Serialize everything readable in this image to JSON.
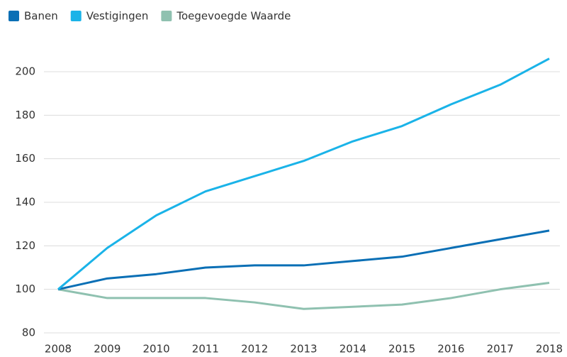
{
  "chart_data": {
    "type": "line",
    "x": [
      2008,
      2009,
      2010,
      2011,
      2012,
      2013,
      2014,
      2015,
      2016,
      2017,
      2018
    ],
    "xlim": [
      2008,
      2018
    ],
    "xticks": [
      2008,
      2009,
      2010,
      2011,
      2012,
      2013,
      2014,
      2015,
      2016,
      2017,
      2018
    ],
    "ylim": [
      80,
      200
    ],
    "yticks": [
      80,
      100,
      120,
      140,
      160,
      180,
      200
    ],
    "grid": true,
    "legend": "top-left",
    "series": [
      {
        "name": "Banen",
        "color": "#0a6fb5",
        "values": [
          100,
          105,
          107,
          110,
          111,
          111,
          113,
          115,
          119,
          123,
          127
        ]
      },
      {
        "name": "Vestigingen",
        "color": "#1ab3e8",
        "values": [
          100,
          119,
          134,
          145,
          152,
          159,
          168,
          175,
          185,
          194,
          206
        ]
      },
      {
        "name": "Toegevoegde Waarde",
        "color": "#8fc1b0",
        "values": [
          100,
          96,
          96,
          96,
          94,
          91,
          92,
          93,
          96,
          100,
          103
        ]
      }
    ]
  }
}
